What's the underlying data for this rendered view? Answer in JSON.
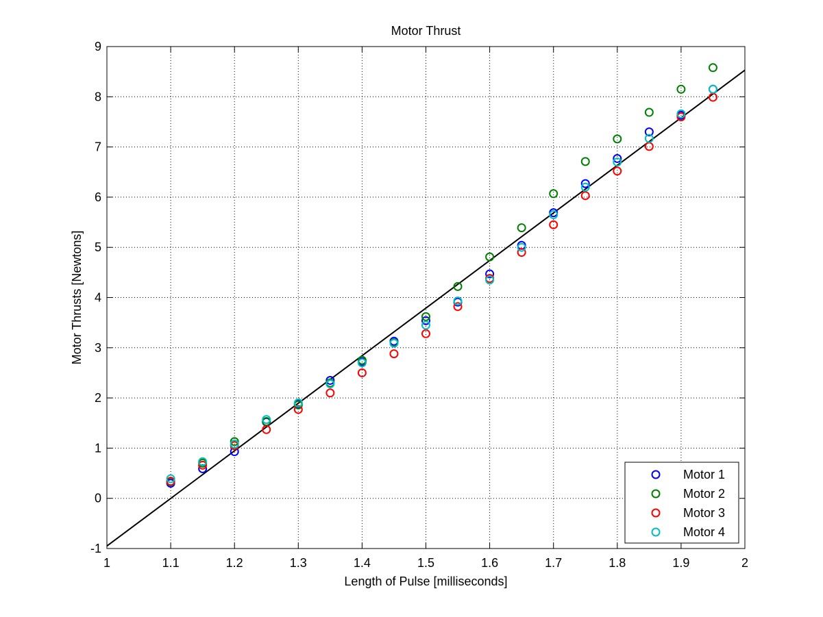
{
  "chart_data": {
    "type": "scatter",
    "title": "Motor Thrust",
    "xlabel": "Length of Pulse [milliseconds]",
    "ylabel": "Motor Thrusts [Newtons]",
    "xlim": [
      1,
      2
    ],
    "ylim": [
      -1,
      9
    ],
    "xticks": [
      1,
      1.1,
      1.2,
      1.3,
      1.4,
      1.5,
      1.6,
      1.7,
      1.8,
      1.9,
      2
    ],
    "yticks": [
      -1,
      0,
      1,
      2,
      3,
      4,
      5,
      6,
      7,
      8,
      9
    ],
    "xtick_labels": [
      "1",
      "1.1",
      "1.2",
      "1.3",
      "1.4",
      "1.5",
      "1.6",
      "1.7",
      "1.8",
      "1.9",
      "2"
    ],
    "ytick_labels": [
      "-1",
      "0",
      "1",
      "2",
      "3",
      "4",
      "5",
      "6",
      "7",
      "8",
      "9"
    ],
    "grid": true,
    "legend_position": "bottom-right",
    "x": [
      1.1,
      1.15,
      1.2,
      1.25,
      1.3,
      1.35,
      1.4,
      1.45,
      1.5,
      1.55,
      1.6,
      1.65,
      1.7,
      1.75,
      1.8,
      1.85,
      1.9,
      1.95
    ],
    "series": [
      {
        "name": "Motor 1",
        "color": "#0000ff",
        "marker": "circle",
        "values": [
          0.3,
          0.59,
          0.93,
          1.52,
          1.88,
          2.35,
          2.72,
          3.13,
          3.54,
          3.91,
          4.47,
          5.04,
          5.69,
          6.27,
          6.77,
          7.3,
          7.63,
          8.15
        ]
      },
      {
        "name": "Motor 2",
        "color": "#008000",
        "marker": "circle",
        "values": [
          0.33,
          0.7,
          1.13,
          1.53,
          1.86,
          2.3,
          2.75,
          3.1,
          3.62,
          4.22,
          4.81,
          5.39,
          6.07,
          6.71,
          7.16,
          7.69,
          8.15,
          8.58
        ]
      },
      {
        "name": "Motor 3",
        "color": "#ff0000",
        "marker": "circle",
        "values": [
          0.34,
          0.66,
          1.05,
          1.37,
          1.77,
          2.1,
          2.5,
          2.88,
          3.28,
          3.82,
          4.38,
          4.9,
          5.45,
          6.03,
          6.52,
          7.01,
          7.6,
          7.99
        ]
      },
      {
        "name": "Motor 4",
        "color": "#00bfbf",
        "marker": "circle",
        "values": [
          0.39,
          0.73,
          1.08,
          1.57,
          1.9,
          2.28,
          2.7,
          3.09,
          3.45,
          3.93,
          4.35,
          5.0,
          5.65,
          6.2,
          6.7,
          7.17,
          7.66,
          8.15
        ]
      }
    ],
    "fit_line": {
      "color": "#000000",
      "x": [
        1,
        2
      ],
      "y": [
        -0.95,
        8.53
      ]
    }
  }
}
